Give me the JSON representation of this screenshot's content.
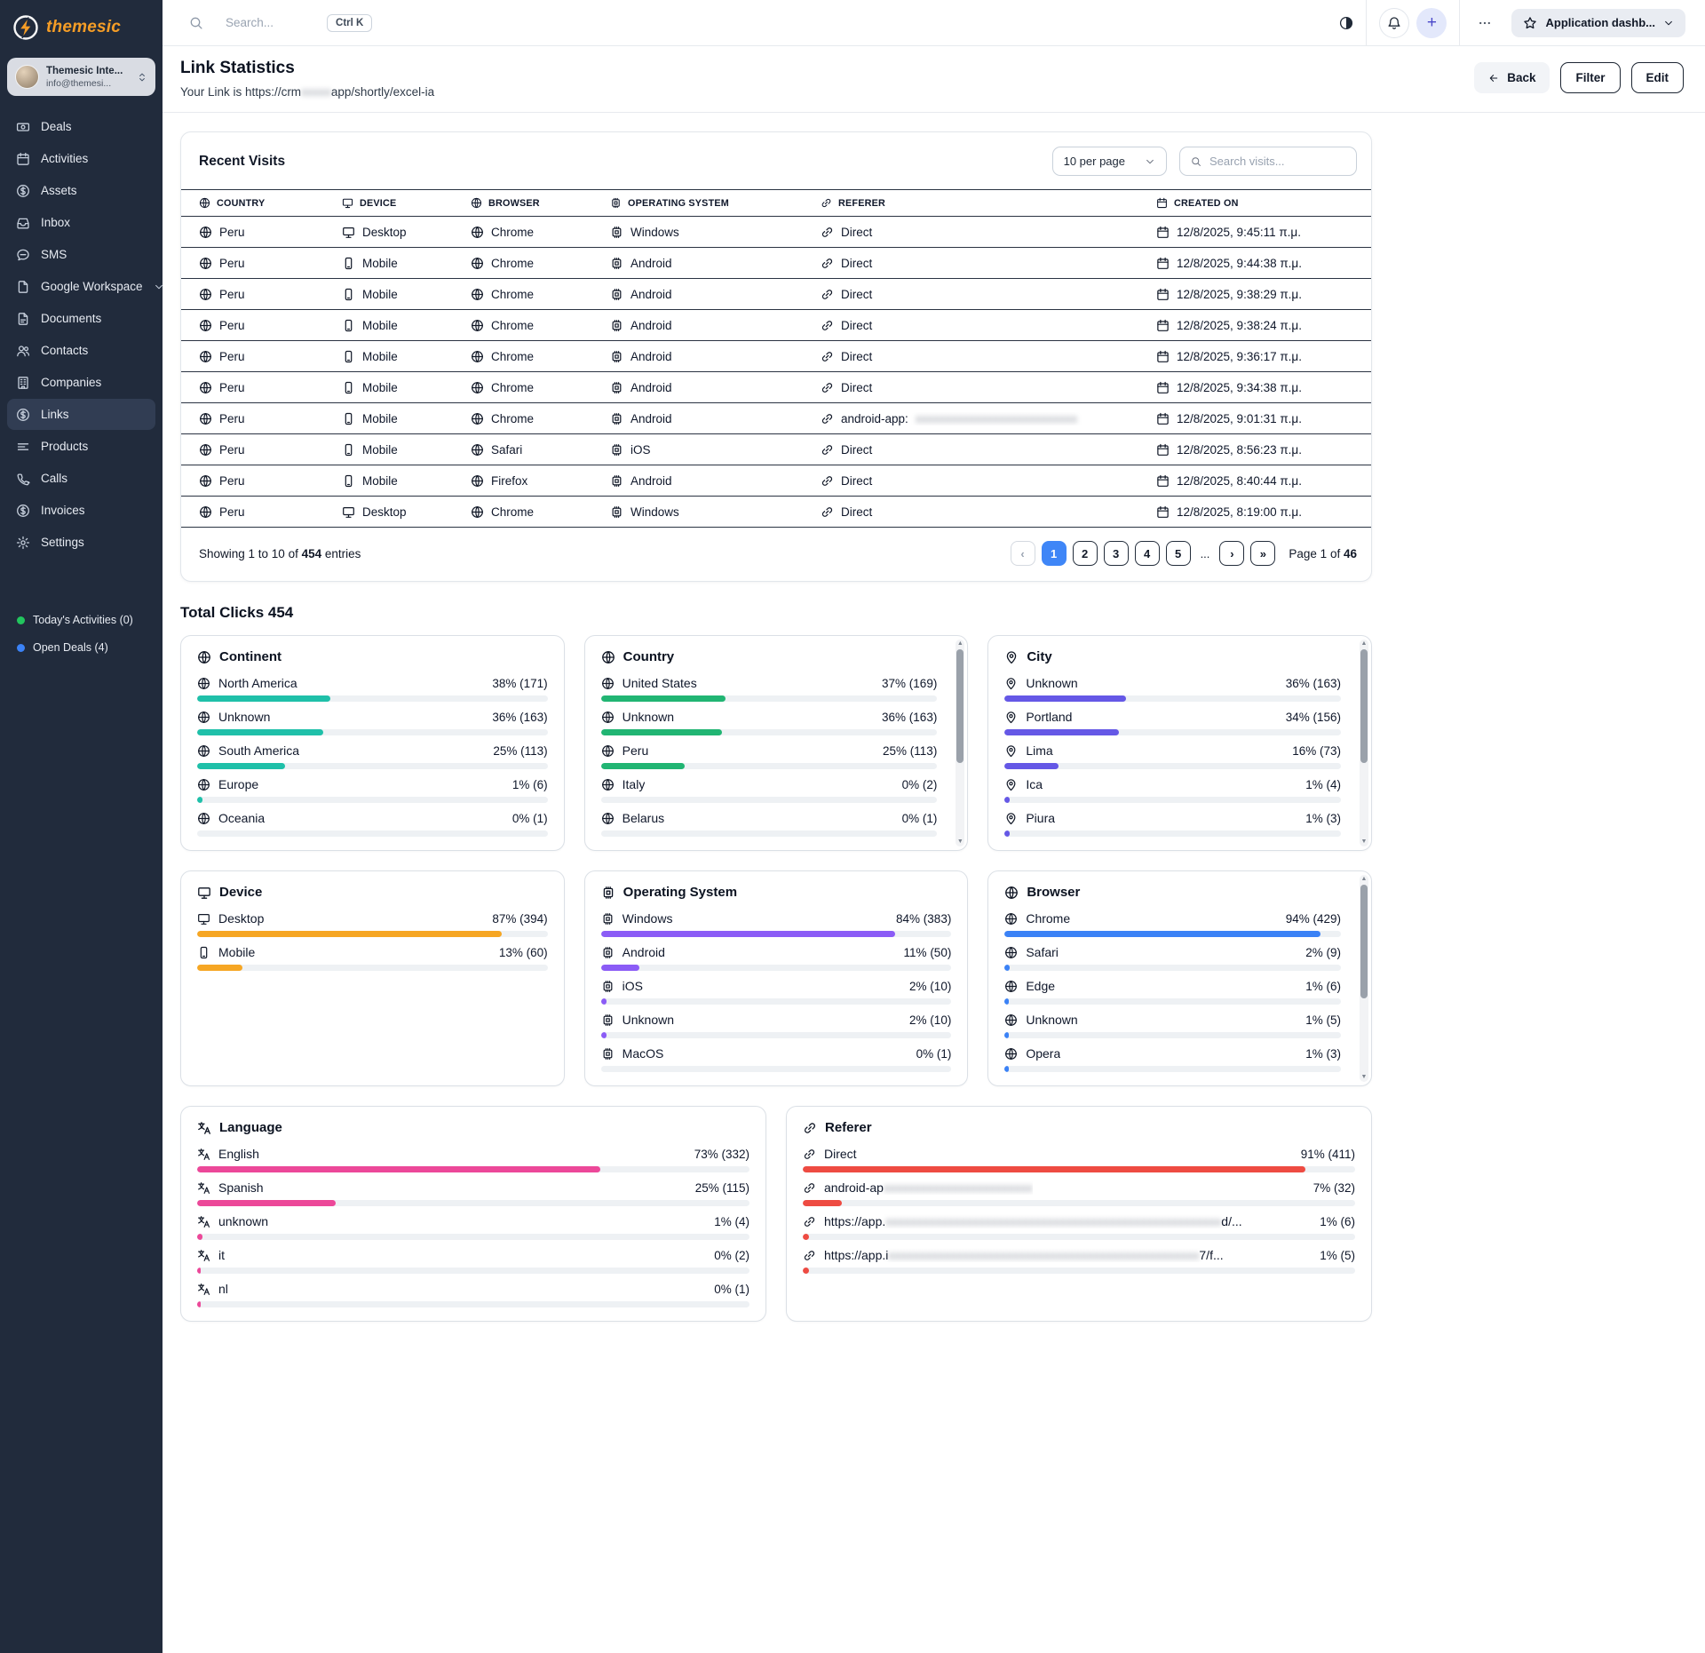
{
  "sidebar": {
    "logo_text": "themesic",
    "user": {
      "name": "Themesic Inte...",
      "email": "info@themesi..."
    },
    "items": [
      {
        "label": "Deals",
        "icon": "deals-icon"
      },
      {
        "label": "Activities",
        "icon": "activities-icon"
      },
      {
        "label": "Assets",
        "icon": "assets-icon"
      },
      {
        "label": "Inbox",
        "icon": "inbox-icon"
      },
      {
        "label": "SMS",
        "icon": "sms-icon"
      },
      {
        "label": "Google Workspace",
        "icon": "google-workspace-icon",
        "chevron": true
      },
      {
        "label": "Documents",
        "icon": "documents-icon"
      },
      {
        "label": "Contacts",
        "icon": "contacts-icon"
      },
      {
        "label": "Companies",
        "icon": "companies-icon"
      },
      {
        "label": "Links",
        "icon": "links-icon",
        "active": true
      },
      {
        "label": "Products",
        "icon": "products-icon"
      },
      {
        "label": "Calls",
        "icon": "calls-icon"
      },
      {
        "label": "Invoices",
        "icon": "invoices-icon"
      },
      {
        "label": "Settings",
        "icon": "settings-icon"
      }
    ],
    "footer": [
      {
        "label": "Today's Activities (0)",
        "dot": "#22c55e"
      },
      {
        "label": "Open Deals (4)",
        "dot": "#3b82f6"
      }
    ]
  },
  "topbar": {
    "search_placeholder": "Search...",
    "kbd": "Ctrl K",
    "app_menu": "Application dashb..."
  },
  "page": {
    "title": "Link Statistics",
    "subtitle_prefix": "Your Link is https://crm",
    "subtitle_blur": "xxxxx",
    "subtitle_suffix": "app/shortly/excel-ia",
    "back": "Back",
    "filter": "Filter",
    "edit": "Edit"
  },
  "visits": {
    "title": "Recent Visits",
    "per_page": "10 per page",
    "search_placeholder": "Search visits...",
    "columns": [
      {
        "label": "Country",
        "icon": "globe-icon"
      },
      {
        "label": "Device",
        "icon": "desktop-icon"
      },
      {
        "label": "Browser",
        "icon": "browser-icon"
      },
      {
        "label": "Operating System",
        "icon": "os-icon"
      },
      {
        "label": "Referer",
        "icon": "link-icon"
      },
      {
        "label": "Created On",
        "icon": "calendar-icon"
      }
    ],
    "rows": [
      {
        "country": "Peru",
        "device": "Desktop",
        "browser": "Chrome",
        "os": "Windows",
        "referer": "Direct",
        "created": "12/8/2025, 9:45:11 π.μ."
      },
      {
        "country": "Peru",
        "device": "Mobile",
        "browser": "Chrome",
        "os": "Android",
        "referer": "Direct",
        "created": "12/8/2025, 9:44:38 π.μ."
      },
      {
        "country": "Peru",
        "device": "Mobile",
        "browser": "Chrome",
        "os": "Android",
        "referer": "Direct",
        "created": "12/8/2025, 9:38:29 π.μ."
      },
      {
        "country": "Peru",
        "device": "Mobile",
        "browser": "Chrome",
        "os": "Android",
        "referer": "Direct",
        "created": "12/8/2025, 9:38:24 π.μ."
      },
      {
        "country": "Peru",
        "device": "Mobile",
        "browser": "Chrome",
        "os": "Android",
        "referer": "Direct",
        "created": "12/8/2025, 9:36:17 π.μ."
      },
      {
        "country": "Peru",
        "device": "Mobile",
        "browser": "Chrome",
        "os": "Android",
        "referer": "Direct",
        "created": "12/8/2025, 9:34:38 π.μ."
      },
      {
        "country": "Peru",
        "device": "Mobile",
        "browser": "Chrome",
        "os": "Android",
        "referer": "android-app:",
        "referer_blur": "xxxxxxxxxxxxxxxxxxxxxxxxxxx",
        "created": "12/8/2025, 9:01:31 π.μ."
      },
      {
        "country": "Peru",
        "device": "Mobile",
        "browser": "Safari",
        "os": "iOS",
        "referer": "Direct",
        "created": "12/8/2025, 8:56:23 π.μ."
      },
      {
        "country": "Peru",
        "device": "Mobile",
        "browser": "Firefox",
        "os": "Android",
        "referer": "Direct",
        "created": "12/8/2025, 8:40:44 π.μ."
      },
      {
        "country": "Peru",
        "device": "Desktop",
        "browser": "Chrome",
        "os": "Windows",
        "referer": "Direct",
        "created": "12/8/2025, 8:19:00 π.μ."
      }
    ],
    "showing_prefix": "Showing 1 to 10 of ",
    "showing_count": "454",
    "showing_suffix": " entries",
    "pagination": {
      "prev": "‹",
      "pages": [
        "1",
        "2",
        "3",
        "4",
        "5"
      ],
      "active": "1",
      "dots": "...",
      "next": "›",
      "last": "»",
      "label_prefix": "Page 1 of ",
      "label_total": "46"
    }
  },
  "stats": {
    "title": "Total Clicks 454",
    "cards": [
      {
        "title": "Continent",
        "icon": "globe-icon",
        "item_icon": "globe-icon",
        "color": "#1fc0a9",
        "scrollbar": false,
        "items": [
          {
            "label": "North America",
            "display": "38% (171)",
            "bar": 38
          },
          {
            "label": "Unknown",
            "display": "36% (163)",
            "bar": 36
          },
          {
            "label": "South America",
            "display": "25% (113)",
            "bar": 25
          },
          {
            "label": "Europe",
            "display": "1% (6)",
            "bar": 1.4
          },
          {
            "label": "Oceania",
            "display": "0% (1)",
            "bar": 0
          }
        ]
      },
      {
        "title": "Country",
        "icon": "globe-icon",
        "item_icon": "globe-icon",
        "color": "#21b573",
        "scrollbar": true,
        "items": [
          {
            "label": "United States",
            "display": "37% (169)",
            "bar": 37
          },
          {
            "label": "Unknown",
            "display": "36% (163)",
            "bar": 36
          },
          {
            "label": "Peru",
            "display": "25% (113)",
            "bar": 25
          },
          {
            "label": "Italy",
            "display": "0% (2)",
            "bar": 0
          },
          {
            "label": "Belarus",
            "display": "0% (1)",
            "bar": 0
          }
        ]
      },
      {
        "title": "City",
        "icon": "map-pin-icon",
        "item_icon": "map-pin-icon",
        "color": "#6558e6",
        "scrollbar": true,
        "items": [
          {
            "label": "Unknown",
            "display": "36% (163)",
            "bar": 36
          },
          {
            "label": "Portland",
            "display": "34% (156)",
            "bar": 34
          },
          {
            "label": "Lima",
            "display": "16% (73)",
            "bar": 16
          },
          {
            "label": "Ica",
            "display": "1% (4)",
            "bar": 1.4
          },
          {
            "label": "Piura",
            "display": "1% (3)",
            "bar": 1.4
          }
        ]
      },
      {
        "title": "Device",
        "icon": "desktop-icon",
        "item_icon": "desktop-icon",
        "color": "#f6a623",
        "scrollbar": false,
        "items": [
          {
            "label": "Desktop",
            "icon": "desktop-icon",
            "display": "87% (394)",
            "bar": 87
          },
          {
            "label": "Mobile",
            "icon": "mobile-icon",
            "display": "13% (60)",
            "bar": 13
          }
        ]
      },
      {
        "title": "Operating System",
        "icon": "os-icon",
        "item_icon": "os-icon",
        "color": "#8b5cf6",
        "scrollbar": false,
        "items": [
          {
            "label": "Windows",
            "display": "84% (383)",
            "bar": 84
          },
          {
            "label": "Android",
            "display": "11% (50)",
            "bar": 11
          },
          {
            "label": "iOS",
            "display": "2% (10)",
            "bar": 1.5
          },
          {
            "label": "Unknown",
            "display": "2% (10)",
            "bar": 1.5
          },
          {
            "label": "MacOS",
            "display": "0% (1)",
            "bar": 0
          }
        ]
      },
      {
        "title": "Browser",
        "icon": "browser-icon",
        "item_icon": "browser-icon",
        "color": "#3b82f6",
        "scrollbar": true,
        "items": [
          {
            "label": "Chrome",
            "display": "94% (429)",
            "bar": 94
          },
          {
            "label": "Safari",
            "display": "2% (9)",
            "bar": 1.5
          },
          {
            "label": "Edge",
            "display": "1% (6)",
            "bar": 1.2
          },
          {
            "label": "Unknown",
            "display": "1% (5)",
            "bar": 1.2
          },
          {
            "label": "Opera",
            "display": "1% (3)",
            "bar": 1.2
          }
        ]
      },
      {
        "title": "Language",
        "icon": "translate-icon",
        "item_icon": "translate-icon",
        "color": "#ec4899",
        "scrollbar": false,
        "items": [
          {
            "label": "English",
            "display": "73% (332)",
            "bar": 73
          },
          {
            "label": "Spanish",
            "display": "25% (115)",
            "bar": 25
          },
          {
            "label": "unknown",
            "display": "1% (4)",
            "bar": 1
          },
          {
            "label": "it",
            "display": "0% (2)",
            "bar": 0.6
          },
          {
            "label": "nl",
            "display": "0% (1)",
            "bar": 0.6
          }
        ]
      },
      {
        "title": "Referer",
        "icon": "link-icon",
        "item_icon": "link-icon",
        "color": "#ee4b42",
        "scrollbar": false,
        "items": [
          {
            "label": "Direct",
            "display": "91% (411)",
            "bar": 91
          },
          {
            "label_prefix": "android-ap",
            "label_blur": "xxxxxxxxxxxxxxxxxxxxxxxx",
            "label_suffix": "",
            "display": "7% (32)",
            "bar": 7
          },
          {
            "label_prefix": "https://app.",
            "label_blur": "xxxxxxxxxxxxxxxxxxxxxxxxxxxxxxxxxxxxxxxxxxxxxxxxxxxxxx",
            "label_suffix": "d/...",
            "display": "1% (6)",
            "bar": 1.1
          },
          {
            "label_prefix": "https://app.i",
            "label_blur": "xxxxxxxxxxxxxxxxxxxxxxxxxxxxxxxxxxxxxxxxxxxxxxxxxx",
            "label_suffix": "7/f...",
            "display": "1% (5)",
            "bar": 1.1
          }
        ]
      }
    ]
  }
}
